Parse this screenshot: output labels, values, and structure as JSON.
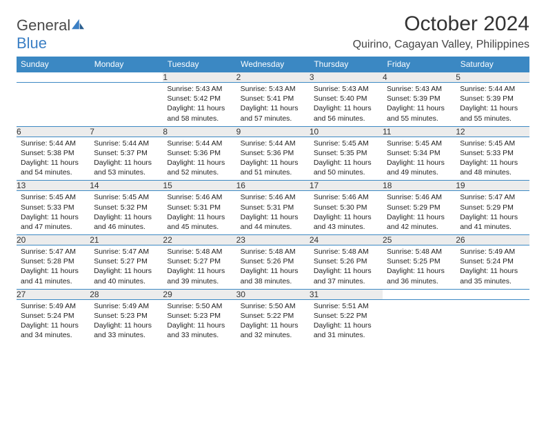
{
  "brand": {
    "part1": "General",
    "part2": "Blue"
  },
  "title": "October 2024",
  "subtitle": "Quirino, Cagayan Valley, Philippines",
  "colors": {
    "header_bg": "#3b88c3",
    "header_text": "#ffffff",
    "daynum_bg": "#ececec",
    "border": "#3b88c3",
    "page_bg": "#ffffff",
    "text": "#222222",
    "title_text": "#333333",
    "logo_gray": "#4a4a4a",
    "logo_blue": "#3b7fc4"
  },
  "typography": {
    "title_fontsize": 30,
    "subtitle_fontsize": 16,
    "header_fontsize": 12,
    "daynum_fontsize": 12,
    "cell_fontsize": 10.5
  },
  "days": [
    "Sunday",
    "Monday",
    "Tuesday",
    "Wednesday",
    "Thursday",
    "Friday",
    "Saturday"
  ],
  "weeks": [
    [
      null,
      null,
      {
        "n": "1",
        "sr": "5:43 AM",
        "ss": "5:42 PM",
        "dl": "11 hours and 58 minutes."
      },
      {
        "n": "2",
        "sr": "5:43 AM",
        "ss": "5:41 PM",
        "dl": "11 hours and 57 minutes."
      },
      {
        "n": "3",
        "sr": "5:43 AM",
        "ss": "5:40 PM",
        "dl": "11 hours and 56 minutes."
      },
      {
        "n": "4",
        "sr": "5:43 AM",
        "ss": "5:39 PM",
        "dl": "11 hours and 55 minutes."
      },
      {
        "n": "5",
        "sr": "5:44 AM",
        "ss": "5:39 PM",
        "dl": "11 hours and 55 minutes."
      }
    ],
    [
      {
        "n": "6",
        "sr": "5:44 AM",
        "ss": "5:38 PM",
        "dl": "11 hours and 54 minutes."
      },
      {
        "n": "7",
        "sr": "5:44 AM",
        "ss": "5:37 PM",
        "dl": "11 hours and 53 minutes."
      },
      {
        "n": "8",
        "sr": "5:44 AM",
        "ss": "5:36 PM",
        "dl": "11 hours and 52 minutes."
      },
      {
        "n": "9",
        "sr": "5:44 AM",
        "ss": "5:36 PM",
        "dl": "11 hours and 51 minutes."
      },
      {
        "n": "10",
        "sr": "5:45 AM",
        "ss": "5:35 PM",
        "dl": "11 hours and 50 minutes."
      },
      {
        "n": "11",
        "sr": "5:45 AM",
        "ss": "5:34 PM",
        "dl": "11 hours and 49 minutes."
      },
      {
        "n": "12",
        "sr": "5:45 AM",
        "ss": "5:33 PM",
        "dl": "11 hours and 48 minutes."
      }
    ],
    [
      {
        "n": "13",
        "sr": "5:45 AM",
        "ss": "5:33 PM",
        "dl": "11 hours and 47 minutes."
      },
      {
        "n": "14",
        "sr": "5:45 AM",
        "ss": "5:32 PM",
        "dl": "11 hours and 46 minutes."
      },
      {
        "n": "15",
        "sr": "5:46 AM",
        "ss": "5:31 PM",
        "dl": "11 hours and 45 minutes."
      },
      {
        "n": "16",
        "sr": "5:46 AM",
        "ss": "5:31 PM",
        "dl": "11 hours and 44 minutes."
      },
      {
        "n": "17",
        "sr": "5:46 AM",
        "ss": "5:30 PM",
        "dl": "11 hours and 43 minutes."
      },
      {
        "n": "18",
        "sr": "5:46 AM",
        "ss": "5:29 PM",
        "dl": "11 hours and 42 minutes."
      },
      {
        "n": "19",
        "sr": "5:47 AM",
        "ss": "5:29 PM",
        "dl": "11 hours and 41 minutes."
      }
    ],
    [
      {
        "n": "20",
        "sr": "5:47 AM",
        "ss": "5:28 PM",
        "dl": "11 hours and 41 minutes."
      },
      {
        "n": "21",
        "sr": "5:47 AM",
        "ss": "5:27 PM",
        "dl": "11 hours and 40 minutes."
      },
      {
        "n": "22",
        "sr": "5:48 AM",
        "ss": "5:27 PM",
        "dl": "11 hours and 39 minutes."
      },
      {
        "n": "23",
        "sr": "5:48 AM",
        "ss": "5:26 PM",
        "dl": "11 hours and 38 minutes."
      },
      {
        "n": "24",
        "sr": "5:48 AM",
        "ss": "5:26 PM",
        "dl": "11 hours and 37 minutes."
      },
      {
        "n": "25",
        "sr": "5:48 AM",
        "ss": "5:25 PM",
        "dl": "11 hours and 36 minutes."
      },
      {
        "n": "26",
        "sr": "5:49 AM",
        "ss": "5:24 PM",
        "dl": "11 hours and 35 minutes."
      }
    ],
    [
      {
        "n": "27",
        "sr": "5:49 AM",
        "ss": "5:24 PM",
        "dl": "11 hours and 34 minutes."
      },
      {
        "n": "28",
        "sr": "5:49 AM",
        "ss": "5:23 PM",
        "dl": "11 hours and 33 minutes."
      },
      {
        "n": "29",
        "sr": "5:50 AM",
        "ss": "5:23 PM",
        "dl": "11 hours and 33 minutes."
      },
      {
        "n": "30",
        "sr": "5:50 AM",
        "ss": "5:22 PM",
        "dl": "11 hours and 32 minutes."
      },
      {
        "n": "31",
        "sr": "5:51 AM",
        "ss": "5:22 PM",
        "dl": "11 hours and 31 minutes."
      },
      null,
      null
    ]
  ],
  "labels": {
    "sunrise": "Sunrise:",
    "sunset": "Sunset:",
    "daylight": "Daylight:"
  }
}
